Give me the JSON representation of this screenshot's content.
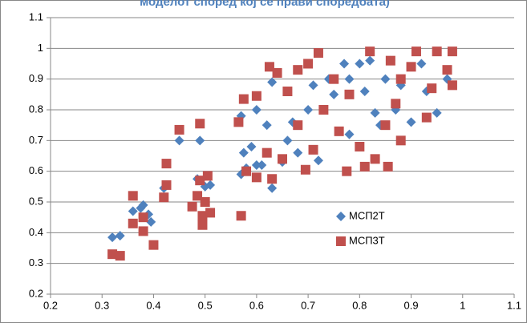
{
  "chart_data": {
    "type": "scatter",
    "title": "моделот според кој се прави споредбата)",
    "xlim": [
      0.2,
      1.1
    ],
    "xticks": [
      0.2,
      0.3,
      0.4,
      0.5,
      0.6,
      0.7,
      0.8,
      0.9,
      1,
      1.1
    ],
    "ylim": [
      0.2,
      1.1
    ],
    "yticks": [
      0.2,
      0.3,
      0.4,
      0.5,
      0.6,
      0.7,
      0.8,
      0.9,
      1,
      1.1
    ],
    "grid": true,
    "legend": "right",
    "series": [
      {
        "name": "МСП2Т",
        "color": "#4f81bd",
        "marker": "diamond",
        "x": [
          0.32,
          0.335,
          0.36,
          0.375,
          0.38,
          0.39,
          0.395,
          0.42,
          0.45,
          0.485,
          0.49,
          0.5,
          0.51,
          0.57,
          0.57,
          0.575,
          0.58,
          0.59,
          0.6,
          0.61,
          0.62,
          0.63,
          0.63,
          0.65,
          0.66,
          0.68,
          0.7,
          0.71,
          0.72,
          0.75,
          0.77,
          0.78,
          0.8,
          0.82,
          0.83,
          0.84,
          0.85,
          0.87,
          0.88,
          0.9,
          0.92,
          0.95,
          0.97,
          0.6,
          0.67,
          0.74,
          0.78,
          0.81,
          0.86,
          0.93
        ],
        "values": [
          0.385,
          0.39,
          0.47,
          0.48,
          0.49,
          0.46,
          0.435,
          0.545,
          0.7,
          0.575,
          0.7,
          0.55,
          0.555,
          0.59,
          0.78,
          0.66,
          0.61,
          0.68,
          0.62,
          0.62,
          0.75,
          0.545,
          0.89,
          0.63,
          0.7,
          0.66,
          0.8,
          0.88,
          0.635,
          0.85,
          0.95,
          0.9,
          0.95,
          0.96,
          0.79,
          0.75,
          0.9,
          0.8,
          0.88,
          0.76,
          0.95,
          0.79,
          0.9,
          0.8,
          0.76,
          0.9,
          0.72,
          0.86,
          0.96,
          0.86
        ]
      },
      {
        "name": "МСП3Т",
        "color": "#c0504d",
        "marker": "square",
        "x": [
          0.32,
          0.335,
          0.36,
          0.36,
          0.38,
          0.38,
          0.4,
          0.42,
          0.425,
          0.425,
          0.45,
          0.475,
          0.485,
          0.49,
          0.49,
          0.495,
          0.495,
          0.5,
          0.505,
          0.51,
          0.565,
          0.57,
          0.575,
          0.58,
          0.6,
          0.6,
          0.62,
          0.625,
          0.63,
          0.64,
          0.65,
          0.66,
          0.68,
          0.695,
          0.7,
          0.71,
          0.72,
          0.73,
          0.75,
          0.775,
          0.78,
          0.8,
          0.81,
          0.82,
          0.83,
          0.85,
          0.855,
          0.86,
          0.87,
          0.88,
          0.9,
          0.91,
          0.93,
          0.94,
          0.95,
          0.97,
          0.98,
          0.98,
          0.76,
          0.68,
          0.88
        ],
        "values": [
          0.33,
          0.325,
          0.52,
          0.43,
          0.45,
          0.405,
          0.36,
          0.515,
          0.555,
          0.625,
          0.735,
          0.485,
          0.52,
          0.755,
          0.57,
          0.455,
          0.425,
          0.5,
          0.585,
          0.465,
          0.76,
          0.455,
          0.835,
          0.6,
          0.58,
          0.845,
          0.66,
          0.94,
          0.575,
          0.92,
          0.64,
          0.86,
          0.93,
          0.605,
          0.95,
          0.67,
          0.985,
          0.8,
          0.9,
          0.6,
          0.85,
          0.68,
          0.615,
          0.99,
          0.64,
          0.75,
          0.615,
          0.96,
          0.82,
          0.9,
          0.94,
          0.99,
          0.775,
          0.87,
          0.99,
          0.93,
          0.88,
          0.99,
          0.73,
          0.75,
          0.7
        ]
      }
    ]
  }
}
